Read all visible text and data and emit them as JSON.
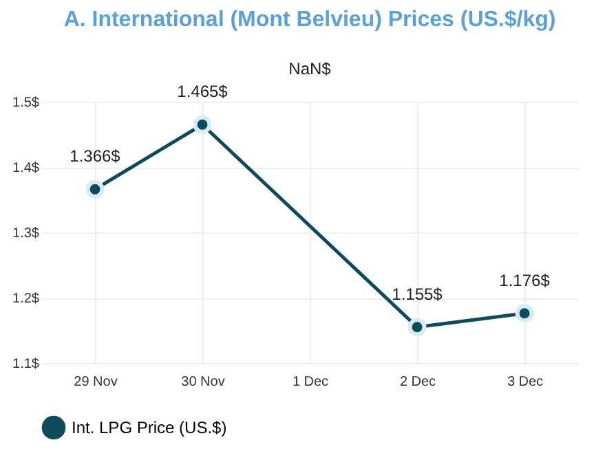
{
  "chart_data": {
    "type": "line",
    "title": "A. International (Mont Belvieu) Prices (US.$/kg)",
    "categories": [
      "29 Nov",
      "30 Nov",
      "1 Dec",
      "2 Dec",
      "3 Dec"
    ],
    "series": [
      {
        "name": "Int. LPG Price (US.$)",
        "color": "#0d4a5c",
        "values": [
          1.366,
          1.465,
          null,
          1.155,
          1.176
        ],
        "value_labels": [
          "1.366$",
          "1.465$",
          "NaN$",
          "1.155$",
          "1.176$"
        ]
      }
    ],
    "ylim": [
      1.1,
      1.5
    ],
    "yticks": [
      {
        "value": 1.1,
        "label": "1.1$"
      },
      {
        "value": 1.2,
        "label": "1.2$"
      },
      {
        "value": 1.3,
        "label": "1.3$"
      },
      {
        "value": 1.4,
        "label": "1.4$"
      },
      {
        "value": 1.5,
        "label": "1.5$"
      }
    ],
    "grid": true,
    "legend": "bottom",
    "marker": "circle",
    "line_style": "solid"
  }
}
